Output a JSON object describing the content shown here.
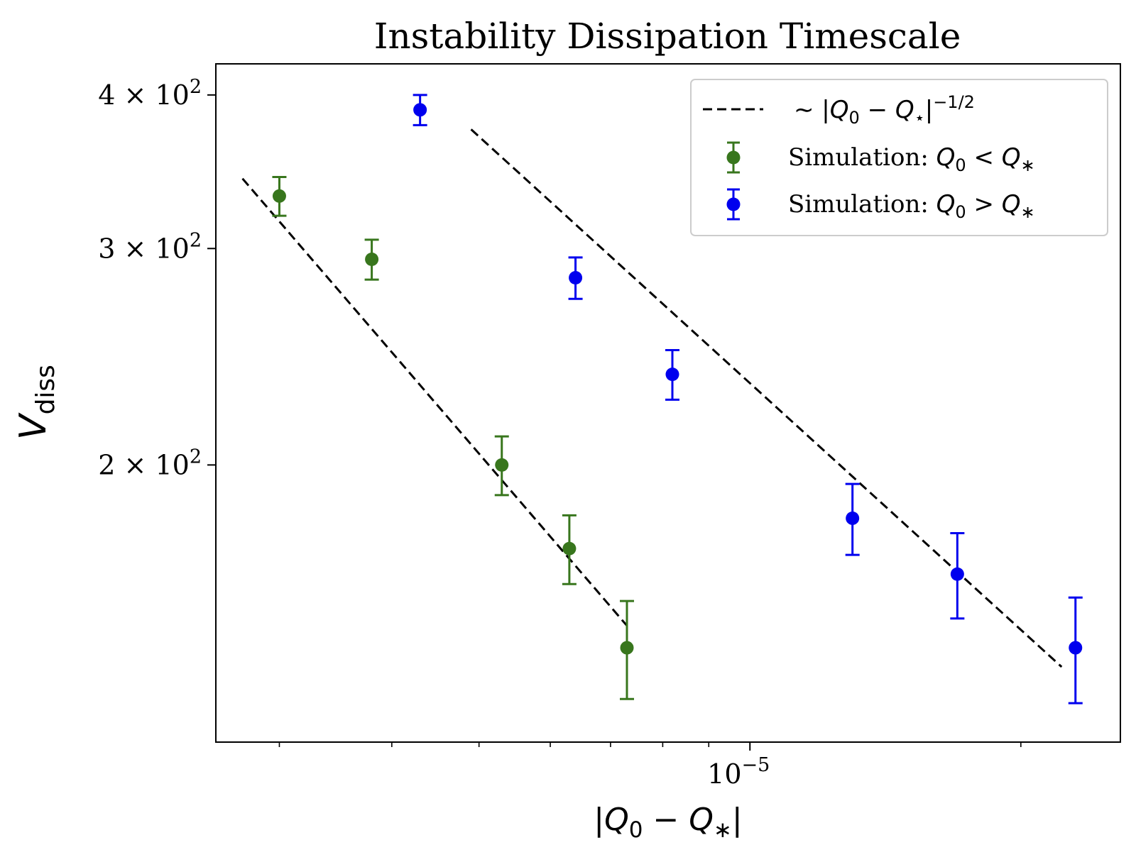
{
  "chart_data": {
    "type": "scatter",
    "title": "Instability Dissipation Timescale",
    "xlabel": "|Q0 − Q∗|",
    "ylabel": "V",
    "ylabel_subscript": "diss",
    "x_scale": "log",
    "y_scale": "log",
    "xlim": [
      2.55e-06,
      2.58e-05
    ],
    "ylim": [
      119,
      424
    ],
    "x_major_ticks": [
      {
        "value": 1e-05,
        "label": "10",
        "exp": "−5"
      }
    ],
    "x_minor_ticks": [
      3e-06,
      4e-06,
      5e-06,
      6e-06,
      7e-06,
      8e-06,
      9e-06,
      2e-05
    ],
    "y_ticks": [
      {
        "value": 200,
        "mant": "2",
        "sym": "×",
        "base": "10",
        "exp": "2"
      },
      {
        "value": 300,
        "mant": "3",
        "sym": "×",
        "base": "10",
        "exp": "2"
      },
      {
        "value": 400,
        "mant": "4",
        "sym": "×",
        "base": "10",
        "exp": "2"
      }
    ],
    "series": [
      {
        "name": "Simulation: Q0 < Q∗",
        "color": "#38761d",
        "points": [
          {
            "x": 3e-06,
            "y": 331,
            "err_lo": 12,
            "err_hi": 12
          },
          {
            "x": 3.8e-06,
            "y": 294,
            "err_lo": 11,
            "err_hi": 11
          },
          {
            "x": 5.3e-06,
            "y": 200,
            "err_lo": 11,
            "err_hi": 11
          },
          {
            "x": 6.3e-06,
            "y": 171,
            "err_lo": 11,
            "err_hi": 11
          },
          {
            "x": 7.3e-06,
            "y": 142,
            "err_lo": 13,
            "err_hi": 13
          }
        ]
      },
      {
        "name": "Simulation: Q0 > Q∗",
        "color": "#0000ee",
        "points": [
          {
            "x": 4.3e-06,
            "y": 389,
            "err_lo": 11,
            "err_hi": 11
          },
          {
            "x": 6.4e-06,
            "y": 284,
            "err_lo": 11,
            "err_hi": 11
          },
          {
            "x": 8.2e-06,
            "y": 237,
            "err_lo": 11,
            "err_hi": 11
          },
          {
            "x": 1.3e-05,
            "y": 181,
            "err_lo": 12,
            "err_hi": 12
          },
          {
            "x": 1.7e-05,
            "y": 163,
            "err_lo": 13,
            "err_hi": 13
          },
          {
            "x": 2.3e-05,
            "y": 142,
            "err_lo": 14,
            "err_hi": 14
          }
        ]
      }
    ],
    "fit_lines": [
      {
        "x": [
          2.73e-06,
          7.3e-06
        ],
        "y": [
          342,
          148
        ]
      },
      {
        "x": [
          4.9e-06,
          2.22e-05
        ],
        "y": [
          375,
          137
        ]
      }
    ],
    "fit_legend_label": "∼ |Q0 − Q⋆|−1/2",
    "legend": {
      "placement": "top-right",
      "fit_label": {
        "prefix": "∼ |",
        "sym": "Q",
        "sub": "0",
        "mid": " − ",
        "sym2": "Q",
        "sub2": "⋆",
        "suffix": "|",
        "exp": "−1/2"
      },
      "green_label": {
        "text": "Simulation: ",
        "sym": "Q",
        "sub": "0",
        "op": " < ",
        "sym2": "Q",
        "sub2": "∗"
      },
      "blue_label": {
        "text": "Simulation: ",
        "sym": "Q",
        "sub": "0",
        "op": " > ",
        "sym2": "Q",
        "sub2": "∗"
      }
    },
    "grid": false
  }
}
